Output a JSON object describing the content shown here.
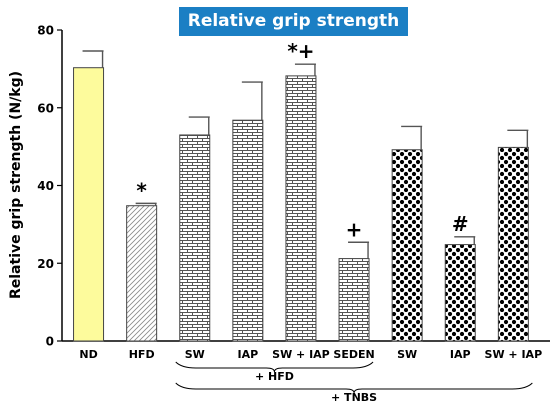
{
  "chart_data": {
    "type": "bar",
    "title": "Relative grip strength",
    "ylabel": "Relative grip strength (N/kg)",
    "xlabel": "",
    "ylim": [
      0,
      80
    ],
    "yticks": [
      0,
      20,
      40,
      60,
      80
    ],
    "grid": false,
    "categories": [
      "ND",
      "HFD",
      "SW",
      "IAP",
      "SW + IAP",
      "SEDEN",
      "SW",
      "IAP",
      "SW + IAP"
    ],
    "values": [
      70.3,
      34.8,
      53.0,
      56.8,
      68.2,
      21.2,
      49.2,
      24.8,
      49.8
    ],
    "errors": [
      4.3,
      0.6,
      4.6,
      9.8,
      3.0,
      4.2,
      6.0,
      2.0,
      4.4
    ],
    "annotations": [
      "",
      "*",
      "",
      "",
      "*+",
      "+",
      "",
      "#",
      ""
    ],
    "patterns": [
      "yellow",
      "diagonal",
      "brick",
      "brick",
      "brick",
      "brick",
      "dots",
      "dots",
      "dots"
    ],
    "groups": [
      {
        "label": "+ HFD",
        "from": 2,
        "to": 5
      },
      {
        "label": "+ TNBS",
        "from": 2,
        "to": 8
      }
    ],
    "colors": {
      "title_bg": "#1b7fc4",
      "nd_fill": "#fdfb9c",
      "axis": "#000000"
    }
  }
}
